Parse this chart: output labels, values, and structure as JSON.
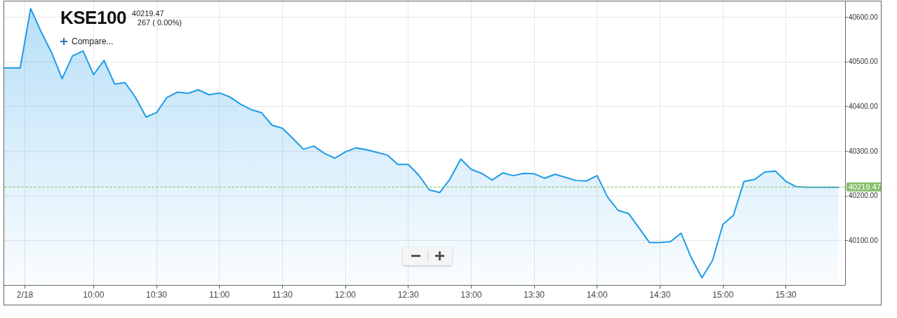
{
  "chart_data": {
    "type": "area",
    "title": "KSE100",
    "subtitle": "40219.47",
    "annotations": [
      "267 ( 0.00%)",
      "Compare..."
    ],
    "color": "#1e9be8",
    "x": [
      9.29,
      9.417,
      9.5,
      9.583,
      9.667,
      9.75,
      9.833,
      9.917,
      10,
      10.083,
      10.167,
      10.25,
      10.333,
      10.417,
      10.5,
      10.583,
      10.667,
      10.75,
      10.833,
      10.917,
      11,
      11.083,
      11.167,
      11.25,
      11.333,
      11.417,
      11.5,
      11.583,
      11.667,
      11.75,
      11.833,
      11.917,
      12,
      12.083,
      12.167,
      12.25,
      12.333,
      12.417,
      12.5,
      12.583,
      12.667,
      12.75,
      12.833,
      12.917,
      13,
      13.083,
      13.167,
      13.25,
      13.333,
      13.417,
      13.5,
      13.583,
      13.667,
      13.75,
      13.833,
      13.917,
      14,
      14.083,
      14.167,
      14.25,
      14.333,
      14.417,
      14.5,
      14.583,
      14.667,
      14.75,
      14.833,
      14.917,
      15,
      15.083,
      15.167,
      15.25,
      15.333,
      15.417,
      15.5,
      15.583,
      15.667,
      15.75,
      15.833,
      15.917
    ],
    "values": [
      40486,
      40486,
      40619,
      40567,
      40520,
      40462,
      40513,
      40524,
      40471,
      40503,
      40450,
      40453,
      40420,
      40376,
      40386,
      40420,
      40432,
      40429,
      40437,
      40426,
      40430,
      40421,
      40405,
      40393,
      40386,
      40358,
      40351,
      40328,
      40304,
      40311,
      40295,
      40284,
      40298,
      40307,
      40303,
      40297,
      40291,
      40270,
      40270,
      40246,
      40213,
      40207,
      40238,
      40282,
      40259,
      40250,
      40235,
      40251,
      40245,
      40250,
      40249,
      40239,
      40248,
      40241,
      40234,
      40233,
      40245,
      40197,
      40167,
      40160,
      40128,
      40095,
      40095,
      40097,
      40116,
      40060,
      40016,
      40055,
      40136,
      40156,
      40232,
      40236,
      40253,
      40255,
      40232,
      40220,
      40219,
      40219,
      40219,
      40219
    ],
    "xlim": [
      9.29,
      15.97
    ],
    "xticks": [
      {
        "value": 9.454,
        "label": "2/18"
      },
      {
        "value": 10,
        "label": "10:00"
      },
      {
        "value": 10.5,
        "label": "10:30"
      },
      {
        "value": 11,
        "label": "11:00"
      },
      {
        "value": 11.5,
        "label": "11:30"
      },
      {
        "value": 12,
        "label": "12:00"
      },
      {
        "value": 12.5,
        "label": "12:30"
      },
      {
        "value": 13,
        "label": "13:00"
      },
      {
        "value": 13.5,
        "label": "13:30"
      },
      {
        "value": 14,
        "label": "14:00"
      },
      {
        "value": 14.5,
        "label": "14:30"
      },
      {
        "value": 15,
        "label": "15:00"
      },
      {
        "value": 15.5,
        "label": "15:30"
      }
    ],
    "ylim": [
      40000,
      40635
    ],
    "yticks": [
      {
        "value": 40100,
        "label": "40100.00"
      },
      {
        "value": 40200,
        "label": "40200.00"
      },
      {
        "value": 40300,
        "label": "40300.00"
      },
      {
        "value": 40400,
        "label": "40400.00"
      },
      {
        "value": 40500,
        "label": "40500.00"
      },
      {
        "value": 40600,
        "label": "40600.00"
      }
    ],
    "grid": true,
    "ref_lines": [
      {
        "axis": "y",
        "value": 40219.47,
        "label": "40219.47",
        "color": "#86bf6a",
        "line_style": "dashed"
      }
    ]
  }
}
